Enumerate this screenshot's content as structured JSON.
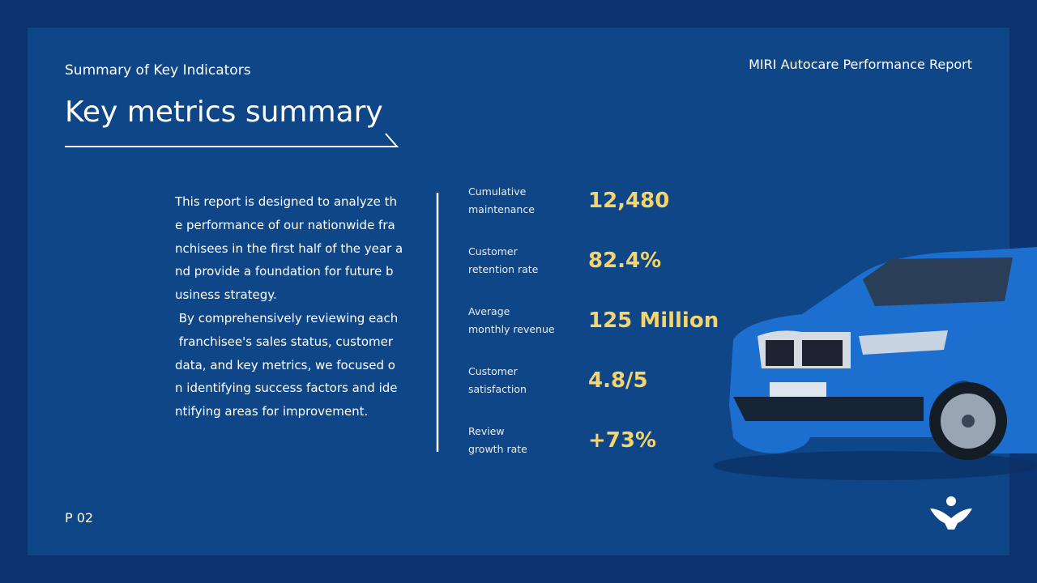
{
  "header": {
    "section": "Summary of Key Indicators",
    "report": "MIRI Autocare Performance Report",
    "title": "Key metrics summary"
  },
  "body": {
    "lines": [
      "This report is designed to analyze th",
      "e performance of our nationwide fra",
      "nchisees in the first half of the year a",
      "nd provide a foundation for future b",
      "usiness strategy.",
      " By comprehensively reviewing each",
      " franchisee's sales status, customer",
      "data, and key metrics, we focused o",
      "n identifying success factors and ide",
      "ntifying areas for improvement."
    ]
  },
  "metrics": [
    {
      "label": [
        "Cumulative",
        "maintenance"
      ],
      "value": "12,480"
    },
    {
      "label": [
        "Customer",
        "retention rate"
      ],
      "value": "82.4%"
    },
    {
      "label": [
        "Average",
        "monthly revenue"
      ],
      "value": "125 Million"
    },
    {
      "label": [
        "Customer",
        "satisfaction"
      ],
      "value": "4.8/5"
    },
    {
      "label": [
        "Review",
        "growth rate"
      ],
      "value": "+73%"
    }
  ],
  "footer": {
    "page": "P 02"
  }
}
